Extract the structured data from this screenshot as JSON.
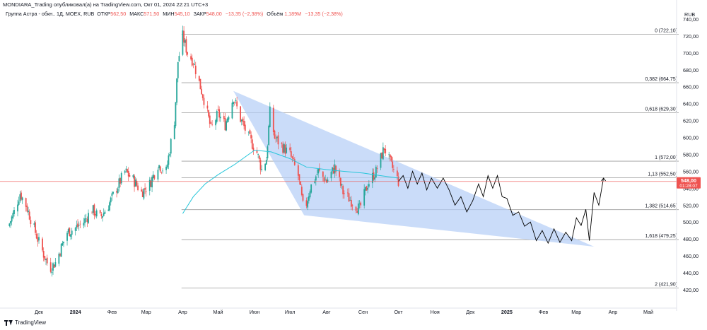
{
  "header": {
    "text": "MONDIARA_Trading опубликовал(а) на TradingView.com, Окт 01, 2024 22:21 UTC+3"
  },
  "legend": {
    "symbol": "Группа Астра - обкн.. 1Д, MOEX, RUB",
    "open_label": "ОТКР",
    "open": "562,50",
    "high_label": "МАКС",
    "high": "571,50",
    "low_label": "МИН",
    "low": "545,10",
    "close_label": "ЗАКР",
    "close": "548,00",
    "change": "−13,35 (−2,38%)",
    "volume_label": "Объём",
    "volume": "1,189M",
    "volume_change": "−13,35 (−2,38%)"
  },
  "footer": {
    "brand": "TradingView"
  },
  "colors": {
    "up": "#26a69a",
    "down": "#ef5350",
    "ma": "#26c6da",
    "triangle": "#b3cdf6",
    "fib": "#9e9e9e",
    "price_line": "#ef5350"
  },
  "chart_data": {
    "type": "candlestick",
    "currency": "RUB",
    "y_ticks": [
      420,
      440,
      460,
      480,
      500,
      520,
      540,
      560,
      580,
      600,
      620,
      640,
      660,
      680,
      700,
      720,
      740
    ],
    "x_ticks": [
      "Дек",
      "2024",
      "Фев",
      "Мар",
      "Апр",
      "Май",
      "Июн",
      "Июл",
      "Авг",
      "Сен",
      "Окт",
      "Ноя",
      "Дек",
      "2025",
      "Фев",
      "Мар",
      "Апр",
      "Май"
    ],
    "price_label": {
      "value": "548,00",
      "countdown": "01:28:07"
    },
    "fib_levels": [
      {
        "level": "0",
        "price": 722.1,
        "label": "0 (722,10)"
      },
      {
        "level": "0.382",
        "price": 664.75,
        "label": "0,382 (664,75)"
      },
      {
        "level": "0.618",
        "price": 629.3,
        "label": "0,618 (629,30)"
      },
      {
        "level": "1",
        "price": 572.0,
        "label": "1 (572,00)"
      },
      {
        "level": "1.13",
        "price": 552.5,
        "label": "1,13 (552,50)"
      },
      {
        "level": "1.382",
        "price": 514.65,
        "label": "1,382 (514,65)"
      },
      {
        "level": "1.618",
        "price": 479.25,
        "label": "1,618 (479,25)"
      },
      {
        "level": "2",
        "price": 421.9,
        "label": "2 (421,90)"
      }
    ],
    "triangle": [
      {
        "date": "2024-05-14",
        "price": 655
      },
      {
        "date": "2024-07-13",
        "price": 508
      },
      {
        "date": "2025-03-12",
        "price": 471
      }
    ],
    "close_path": [
      [
        "2023-11-05",
        495
      ],
      [
        "2023-11-10",
        512
      ],
      [
        "2023-11-15",
        534
      ],
      [
        "2023-11-20",
        520
      ],
      [
        "2023-11-25",
        500
      ],
      [
        "2023-11-30",
        480
      ],
      [
        "2023-12-05",
        462
      ],
      [
        "2023-12-10",
        445
      ],
      [
        "2023-12-15",
        452
      ],
      [
        "2023-12-20",
        470
      ],
      [
        "2023-12-25",
        488
      ],
      [
        "2023-12-31",
        492
      ],
      [
        "2024-01-08",
        500
      ],
      [
        "2024-01-15",
        515
      ],
      [
        "2024-01-22",
        505
      ],
      [
        "2024-01-29",
        520
      ],
      [
        "2024-02-05",
        540
      ],
      [
        "2024-02-12",
        560
      ],
      [
        "2024-02-19",
        550
      ],
      [
        "2024-02-26",
        535
      ],
      [
        "2024-03-04",
        545
      ],
      [
        "2024-03-11",
        568
      ],
      [
        "2024-03-18",
        560
      ],
      [
        "2024-03-25",
        620
      ],
      [
        "2024-03-28",
        690
      ],
      [
        "2024-04-01",
        720
      ],
      [
        "2024-04-05",
        700
      ],
      [
        "2024-04-10",
        690
      ],
      [
        "2024-04-15",
        665
      ],
      [
        "2024-04-20",
        640
      ],
      [
        "2024-04-25",
        610
      ],
      [
        "2024-05-01",
        628
      ],
      [
        "2024-05-07",
        615
      ],
      [
        "2024-05-14",
        648
      ],
      [
        "2024-05-20",
        622
      ],
      [
        "2024-05-27",
        600
      ],
      [
        "2024-06-03",
        582
      ],
      [
        "2024-06-07",
        562
      ],
      [
        "2024-06-11",
        575
      ],
      [
        "2024-06-14",
        630
      ],
      [
        "2024-06-18",
        600
      ],
      [
        "2024-06-24",
        590
      ],
      [
        "2024-07-01",
        580
      ],
      [
        "2024-07-08",
        555
      ],
      [
        "2024-07-13",
        510
      ],
      [
        "2024-07-18",
        540
      ],
      [
        "2024-07-25",
        560
      ],
      [
        "2024-08-01",
        548
      ],
      [
        "2024-08-08",
        565
      ],
      [
        "2024-08-15",
        535
      ],
      [
        "2024-08-22",
        525
      ],
      [
        "2024-08-29",
        515
      ],
      [
        "2024-09-05",
        545
      ],
      [
        "2024-09-12",
        560
      ],
      [
        "2024-09-19",
        588
      ],
      [
        "2024-09-24",
        570
      ],
      [
        "2024-10-01",
        548
      ]
    ],
    "ma_path": [
      [
        "2024-04-01",
        510
      ],
      [
        "2024-04-10",
        530
      ],
      [
        "2024-04-20",
        545
      ],
      [
        "2024-05-01",
        556
      ],
      [
        "2024-05-15",
        568
      ],
      [
        "2024-06-01",
        585
      ],
      [
        "2024-06-15",
        583
      ],
      [
        "2024-07-01",
        575
      ],
      [
        "2024-07-15",
        565
      ],
      [
        "2024-08-01",
        562
      ],
      [
        "2024-08-15",
        560
      ],
      [
        "2024-09-01",
        558
      ],
      [
        "2024-09-15",
        555
      ],
      [
        "2024-10-01",
        552
      ]
    ],
    "forecast_path": [
      [
        "2024-10-01",
        548
      ],
      [
        "2024-10-05",
        555
      ],
      [
        "2024-10-09",
        540
      ],
      [
        "2024-10-13",
        560
      ],
      [
        "2024-10-17",
        545
      ],
      [
        "2024-10-21",
        558
      ],
      [
        "2024-10-25",
        538
      ],
      [
        "2024-10-29",
        552
      ],
      [
        "2024-11-03",
        540
      ],
      [
        "2024-11-08",
        552
      ],
      [
        "2024-11-13",
        538
      ],
      [
        "2024-11-18",
        520
      ],
      [
        "2024-11-23",
        530
      ],
      [
        "2024-11-28",
        512
      ],
      [
        "2024-12-03",
        525
      ],
      [
        "2024-12-08",
        545
      ],
      [
        "2024-12-12",
        530
      ],
      [
        "2024-12-16",
        555
      ],
      [
        "2024-12-20",
        540
      ],
      [
        "2024-12-24",
        555
      ],
      [
        "2024-12-28",
        530
      ],
      [
        "2025-01-01",
        528
      ],
      [
        "2025-01-06",
        508
      ],
      [
        "2025-01-11",
        512
      ],
      [
        "2025-01-16",
        495
      ],
      [
        "2025-01-21",
        500
      ],
      [
        "2025-01-26",
        478
      ],
      [
        "2025-01-31",
        490
      ],
      [
        "2025-02-05",
        475
      ],
      [
        "2025-02-10",
        492
      ],
      [
        "2025-02-15",
        476
      ],
      [
        "2025-02-20",
        488
      ],
      [
        "2025-02-25",
        478
      ],
      [
        "2025-03-01",
        505
      ],
      [
        "2025-03-05",
        496
      ],
      [
        "2025-03-09",
        515
      ],
      [
        "2025-03-12",
        478
      ],
      [
        "2025-03-16",
        535
      ],
      [
        "2025-03-20",
        520
      ],
      [
        "2025-03-24",
        552
      ]
    ]
  }
}
